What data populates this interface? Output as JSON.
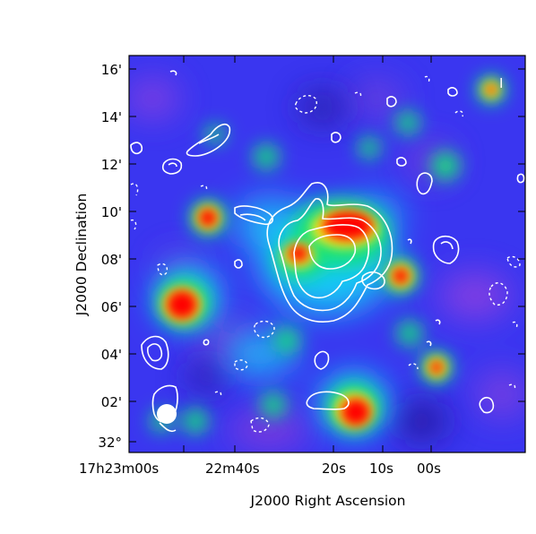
{
  "figure": {
    "kind": "radio/x-ray sky image with overlaid contours",
    "colormap": [
      "#2a18a0",
      "#3a36f0",
      "#7a44e0",
      "#15c8f5",
      "#16e27c",
      "#f3ee1b",
      "#ff0000"
    ],
    "contour_color": "#ffffff"
  },
  "axes": {
    "xlabel": "J2000 Right Ascension",
    "ylabel": "J2000 Declination",
    "x_ticks": [
      "17h23m00s",
      "22m40s",
      "20s",
      "10s",
      "00s"
    ],
    "y_ticks": [
      "16'",
      "14'",
      "12'",
      "10'",
      "08'",
      "06'",
      "04'",
      "02'",
      "32°"
    ]
  },
  "corner_marker": "I"
}
